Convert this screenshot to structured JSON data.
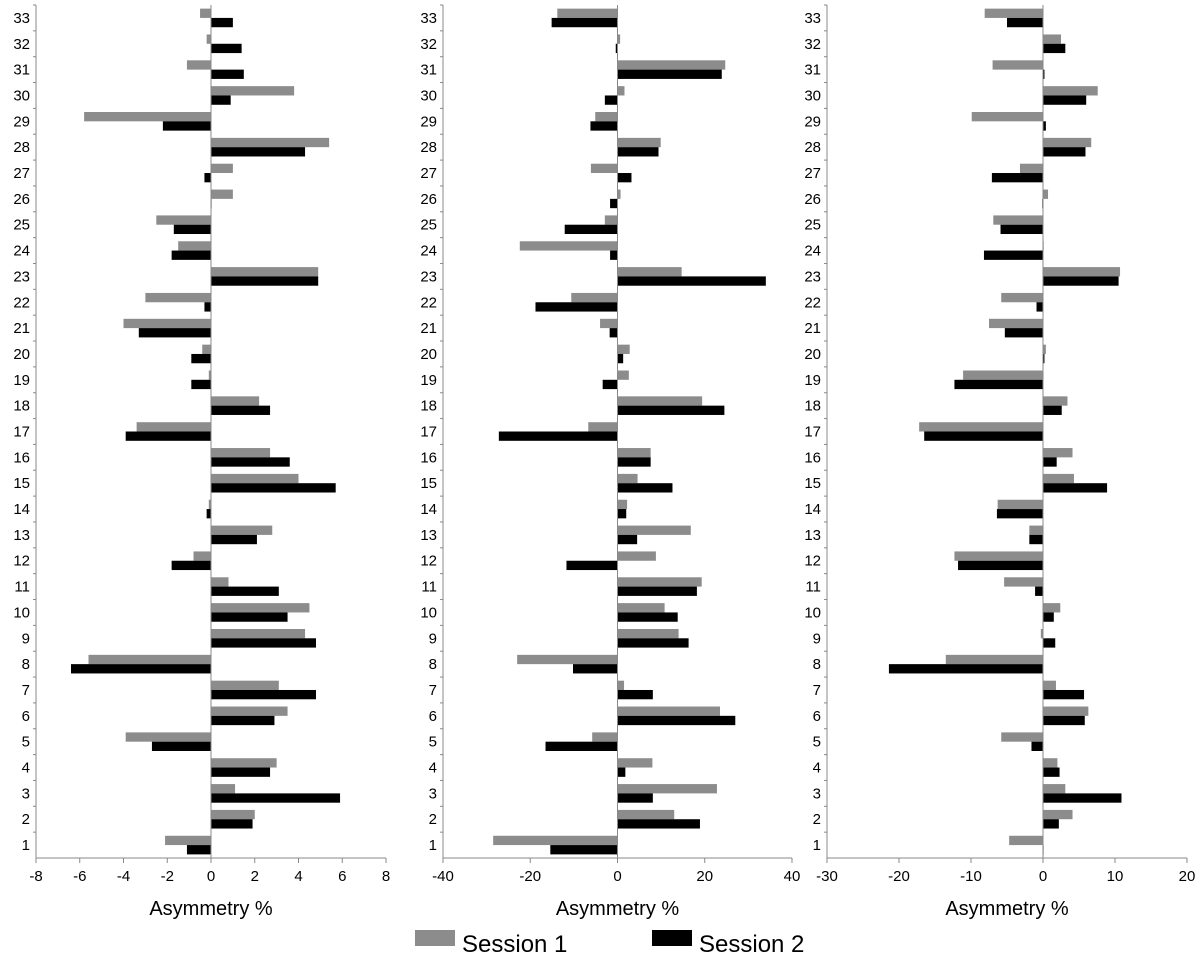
{
  "chart_data": [
    {
      "type": "bar",
      "orientation": "horizontal",
      "categories": [
        "1",
        "2",
        "3",
        "4",
        "5",
        "6",
        "7",
        "8",
        "9",
        "10",
        "11",
        "12",
        "13",
        "14",
        "15",
        "16",
        "17",
        "18",
        "19",
        "20",
        "21",
        "22",
        "23",
        "24",
        "25",
        "26",
        "27",
        "28",
        "29",
        "30",
        "31",
        "32",
        "33"
      ],
      "xlabel": "Asymmetry %",
      "xlim": [
        -8,
        8
      ],
      "xticks": [
        -8,
        -6,
        -4,
        -2,
        0,
        2,
        4,
        6,
        8
      ],
      "series": [
        {
          "name": "Session 1",
          "values": [
            -2.1,
            2.0,
            1.1,
            3.0,
            -3.9,
            3.5,
            3.1,
            -5.6,
            4.3,
            4.5,
            0.8,
            -0.8,
            2.8,
            -0.1,
            4.0,
            2.7,
            -3.4,
            2.2,
            -0.1,
            -0.4,
            -4.0,
            -3.0,
            4.9,
            -1.5,
            -2.5,
            1.0,
            1.0,
            5.4,
            -5.8,
            3.8,
            -1.1,
            -0.2,
            -0.5
          ]
        },
        {
          "name": "Session 2",
          "values": [
            -1.1,
            1.9,
            5.9,
            2.7,
            -2.7,
            2.9,
            4.8,
            -6.4,
            4.8,
            3.5,
            3.1,
            -1.8,
            2.1,
            -0.2,
            5.7,
            3.6,
            -3.9,
            2.7,
            -0.9,
            -0.9,
            -3.3,
            -0.3,
            4.9,
            -1.8,
            -1.7,
            0.0,
            -0.3,
            4.3,
            -2.2,
            0.9,
            1.5,
            1.4,
            1.0
          ]
        }
      ]
    },
    {
      "type": "bar",
      "orientation": "horizontal",
      "categories": [
        "1",
        "2",
        "3",
        "4",
        "5",
        "6",
        "7",
        "8",
        "9",
        "10",
        "11",
        "12",
        "13",
        "14",
        "15",
        "16",
        "17",
        "18",
        "19",
        "20",
        "21",
        "22",
        "23",
        "24",
        "25",
        "26",
        "27",
        "28",
        "29",
        "30",
        "31",
        "32",
        "33"
      ],
      "xlabel": "Asymmetry %",
      "xlim": [
        -40,
        40
      ],
      "xticks": [
        -40,
        -20,
        0,
        20,
        40
      ],
      "series": [
        {
          "name": "Session 1",
          "values": [
            -28.5,
            13.0,
            22.8,
            8.0,
            -5.8,
            23.5,
            1.5,
            -23.0,
            14.0,
            10.8,
            19.3,
            8.8,
            16.8,
            2.2,
            4.6,
            7.6,
            -6.7,
            19.4,
            2.6,
            2.8,
            -4.0,
            -10.6,
            14.7,
            -22.4,
            -2.9,
            0.7,
            -6.1,
            9.9,
            -5.1,
            1.6,
            24.7,
            0.6,
            -13.8
          ]
        },
        {
          "name": "Session 2",
          "values": [
            -15.4,
            18.9,
            8.1,
            1.8,
            -16.5,
            27.0,
            8.1,
            -10.2,
            16.3,
            13.8,
            18.2,
            -11.7,
            4.5,
            2.0,
            12.6,
            7.6,
            -27.2,
            24.5,
            -3.4,
            1.3,
            -1.8,
            -18.8,
            34.0,
            -1.7,
            -12.1,
            -1.7,
            3.2,
            9.4,
            -6.2,
            -2.9,
            23.9,
            -0.4,
            -15.1
          ]
        }
      ]
    },
    {
      "type": "bar",
      "orientation": "horizontal",
      "categories": [
        "1",
        "2",
        "3",
        "4",
        "5",
        "6",
        "7",
        "8",
        "9",
        "10",
        "11",
        "12",
        "13",
        "14",
        "15",
        "16",
        "17",
        "18",
        "19",
        "20",
        "21",
        "22",
        "23",
        "24",
        "25",
        "26",
        "27",
        "28",
        "29",
        "30",
        "31",
        "32",
        "33"
      ],
      "xlabel": "Asymmetry %",
      "xlim": [
        -30,
        20
      ],
      "xticks": [
        -30,
        -20,
        -10,
        0,
        10,
        20
      ],
      "series": [
        {
          "name": "Session 1",
          "values": [
            -4.7,
            4.1,
            3.1,
            2.0,
            -5.8,
            6.3,
            1.8,
            -13.5,
            -0.3,
            2.4,
            -5.4,
            -12.3,
            -1.9,
            -6.3,
            4.3,
            4.1,
            -17.2,
            3.4,
            -11.1,
            0.4,
            -7.5,
            -5.8,
            10.7,
            0.1,
            -6.9,
            0.7,
            -3.2,
            6.7,
            -9.9,
            7.6,
            -7.0,
            2.5,
            -8.1
          ]
        },
        {
          "name": "Session 2",
          "values": [
            0.0,
            2.2,
            10.9,
            2.3,
            -1.6,
            5.8,
            5.7,
            -21.4,
            1.7,
            1.5,
            -1.1,
            -11.8,
            -1.9,
            -6.4,
            8.9,
            1.9,
            -16.5,
            2.6,
            -12.3,
            0.2,
            -5.3,
            -0.9,
            10.5,
            -8.2,
            -5.9,
            -0.1,
            -7.1,
            5.9,
            0.4,
            6.0,
            0.2,
            3.1,
            -5.0
          ]
        }
      ]
    }
  ],
  "legend": {
    "items": [
      {
        "label": "Session 1",
        "color": "#8c8c8c"
      },
      {
        "label": "Session 2",
        "color": "#000000"
      }
    ]
  }
}
